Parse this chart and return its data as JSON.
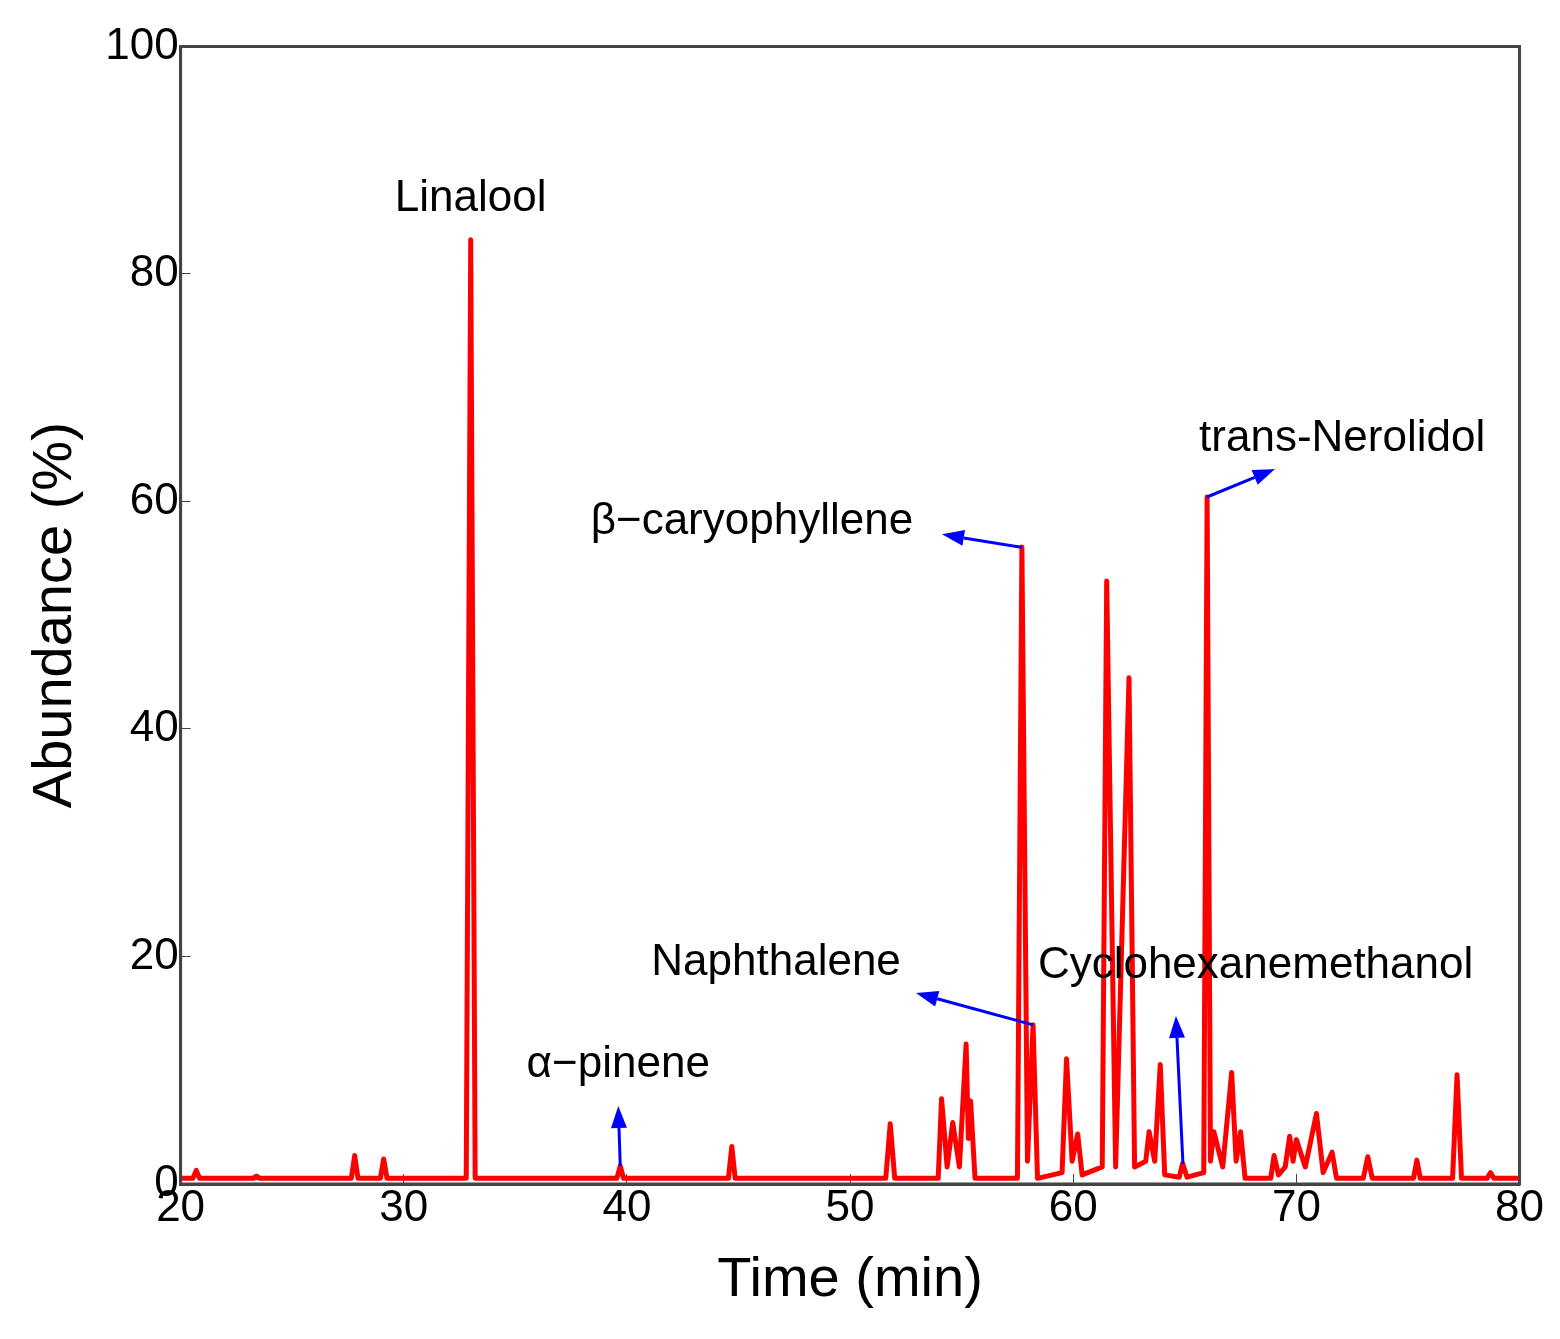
{
  "chart_data": {
    "type": "line",
    "xlabel": "Time (min)",
    "ylabel": "Abundance (%)",
    "x": [
      20,
      20.55,
      20.7,
      20.85,
      23.25,
      23.4,
      23.55,
      27.65,
      27.8,
      27.95,
      28.95,
      29.1,
      29.25,
      32.8,
      33.0,
      33.2,
      39.55,
      39.7,
      39.85,
      44.55,
      44.7,
      44.85,
      51.6,
      51.8,
      52.0,
      53.95,
      54.1,
      54.35,
      54.6,
      54.9,
      55.2,
      55.3,
      55.4,
      55.6,
      57.5,
      57.7,
      57.95,
      58.2,
      58.4,
      59.5,
      59.7,
      59.95,
      60.2,
      60.4,
      61.3,
      61.5,
      61.9,
      62.5,
      62.75,
      63.25,
      63.4,
      63.65,
      63.9,
      64.1,
      64.75,
      64.9,
      65.1,
      65.85,
      66.0,
      66.15,
      66.3,
      66.7,
      67.1,
      67.3,
      67.5,
      67.7,
      68.85,
      69.0,
      69.2,
      69.5,
      69.7,
      69.85,
      70.0,
      70.4,
      70.9,
      71.2,
      71.6,
      71.8,
      73.0,
      73.2,
      73.4,
      75.25,
      75.4,
      75.55,
      77.0,
      77.2,
      77.4,
      78.55,
      78.7,
      78.85,
      80
    ],
    "series": [
      {
        "color": "#ff0000",
        "values": [
          0.5,
          0.5,
          1.2,
          0.5,
          0.5,
          0.7,
          0.5,
          0.5,
          2.5,
          0.5,
          0.5,
          2.2,
          0.5,
          0.5,
          83,
          0.5,
          0.5,
          1.6,
          0.5,
          0.5,
          3.3,
          0.5,
          0.5,
          5.3,
          0.5,
          0.5,
          7.5,
          1.5,
          5.4,
          1.5,
          12.3,
          4,
          7.3,
          0.5,
          0.5,
          56,
          2,
          14,
          0.5,
          1,
          11,
          2,
          4.4,
          0.8,
          1.5,
          53,
          1.5,
          44.5,
          1.5,
          2,
          4.6,
          2,
          10.5,
          0.8,
          0.6,
          1.8,
          0.6,
          1,
          60.4,
          2,
          4.6,
          1.5,
          9.8,
          2,
          4.6,
          0.5,
          0.5,
          2.5,
          0.8,
          1.5,
          4.2,
          2,
          3.9,
          1.5,
          6.2,
          1,
          2.8,
          0.5,
          0.5,
          2.4,
          0.5,
          0.5,
          2.1,
          0.5,
          0.5,
          9.6,
          0.5,
          0.5,
          1.0,
          0.5,
          0.5
        ]
      }
    ],
    "xlim": [
      20,
      80
    ],
    "xticks": [
      20,
      30,
      40,
      50,
      60,
      70,
      80
    ],
    "ylim": [
      0,
      100
    ],
    "yticks": [
      0,
      20,
      40,
      60,
      80,
      100
    ],
    "grid": false,
    "legend": false,
    "marker": "none",
    "line_style": "solid",
    "annotations": [
      {
        "text": "Linalool",
        "x": 33.0,
        "y": 83
      },
      {
        "text": "α−pinene",
        "x": 39.7,
        "y": 1.6
      },
      {
        "text": "Naphthalene",
        "x": 58.2,
        "y": 14
      },
      {
        "text": "β−caryophyllene",
        "x": 57.7,
        "y": 56
      },
      {
        "text": "Cyclohexanemethanol",
        "x": 64.9,
        "y": 1.8
      },
      {
        "text": "trans-Nerolidol",
        "x": 66.0,
        "y": 60.4
      }
    ]
  }
}
